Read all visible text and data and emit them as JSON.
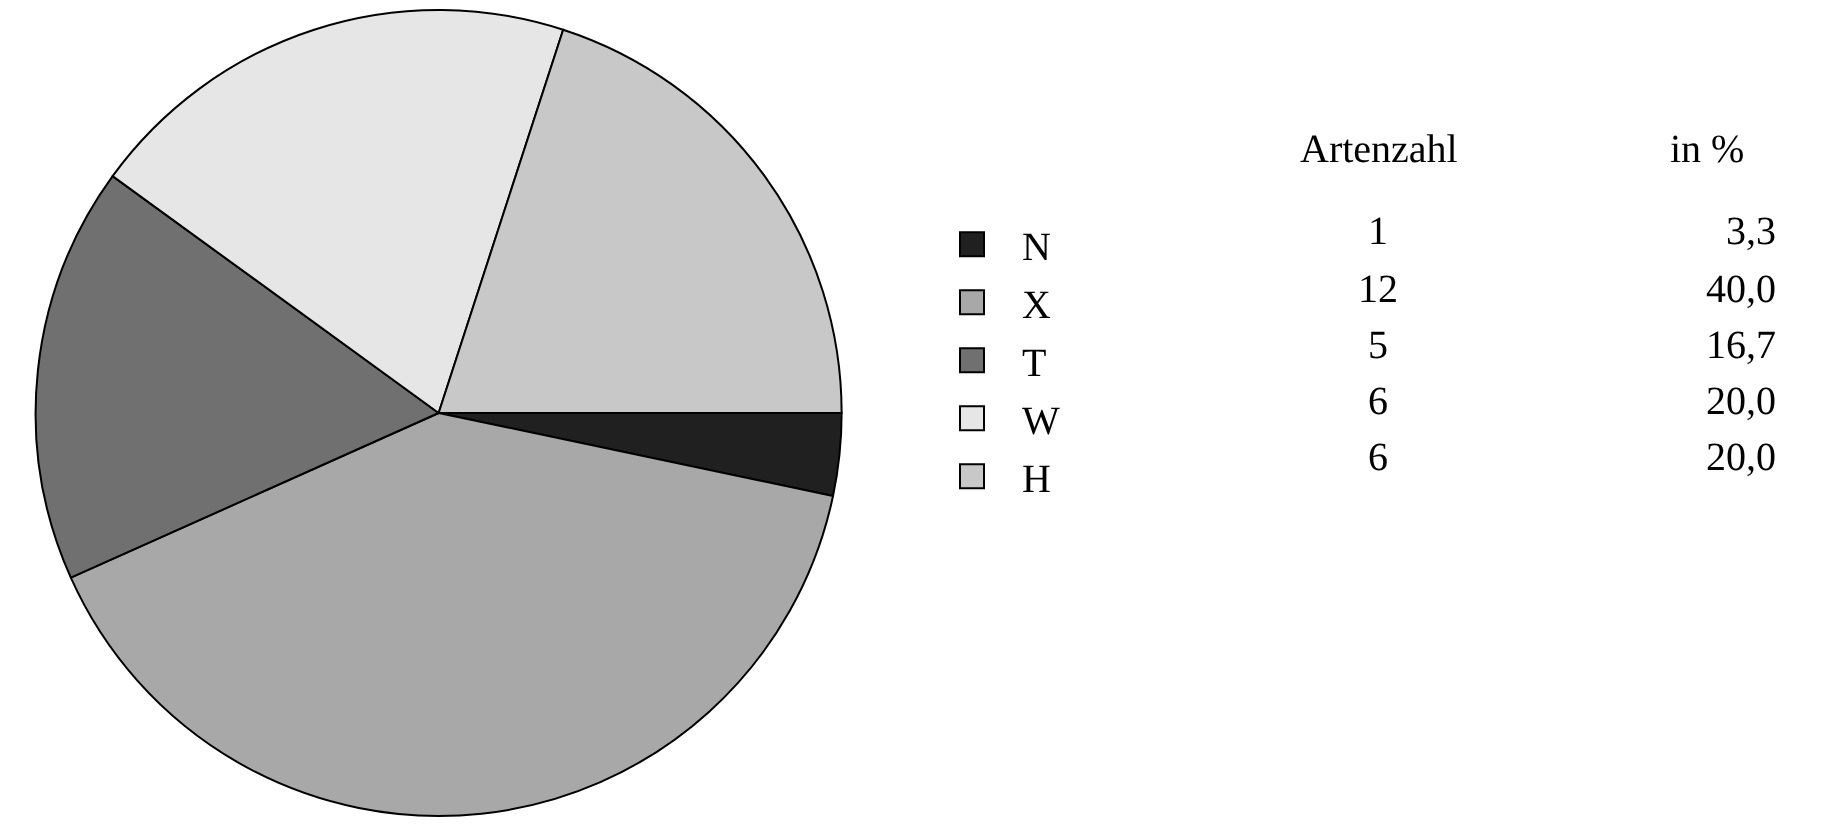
{
  "chart_data": {
    "type": "pie",
    "categories": [
      "N",
      "X",
      "T",
      "W",
      "H"
    ],
    "values": [
      3.3,
      40.0,
      16.7,
      20.0,
      20.0
    ],
    "colors": [
      "#202020",
      "#a8a8a8",
      "#707070",
      "#e6e6e6",
      "#c8c8c8"
    ],
    "value_labels": [
      "3,3",
      "40,0",
      "16,7",
      "20,0",
      "20,0"
    ],
    "annotations": [
      "Artenzahl",
      "in %",
      "1",
      "12",
      "5",
      "6",
      "6"
    ],
    "legend": "right"
  }
}
